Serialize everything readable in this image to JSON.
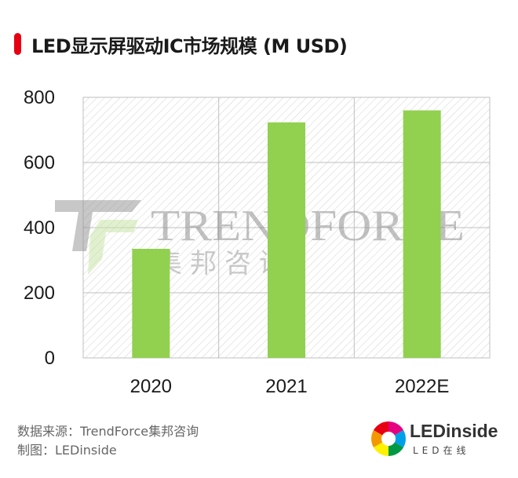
{
  "title": "LED显示屏驱动IC市场规模 (M USD)",
  "colors": {
    "accent": "#e60012",
    "bar": "#92d050",
    "grid": "#bfbfbf"
  },
  "watermark": {
    "latin": "TRENDFORCE",
    "cjk": "集邦咨询"
  },
  "chart_data": {
    "type": "bar",
    "title": "LED显示屏驱动IC市场规模 (M USD)",
    "categories": [
      "2020",
      "2021",
      "2022E"
    ],
    "values": [
      335,
      723,
      760
    ],
    "ylim": [
      0,
      800
    ],
    "yticks": [
      "0",
      "200",
      "400",
      "600",
      "800"
    ],
    "grid": true
  },
  "footer": {
    "source": "数据来源：TrendForce集邦咨询",
    "author": "制图：LEDinside"
  },
  "logo": {
    "word": "LEDinside",
    "sub": "LED在线"
  }
}
